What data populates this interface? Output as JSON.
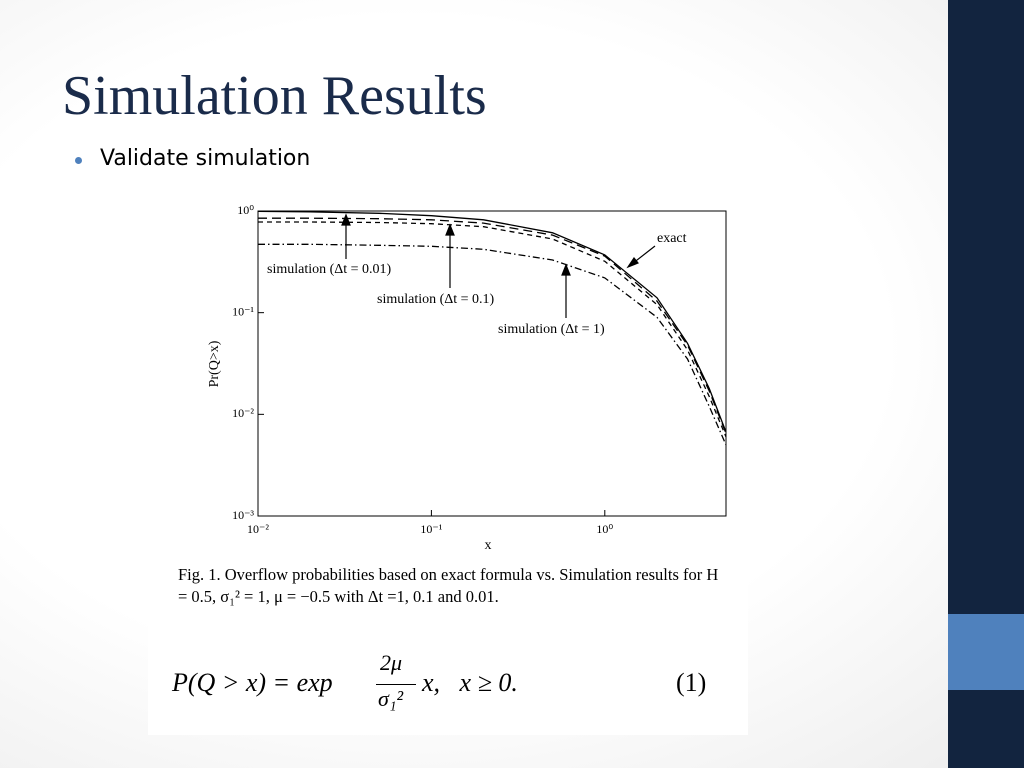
{
  "slide": {
    "title": "Simulation Results",
    "bullets": [
      "Validate simulation"
    ]
  },
  "chart_data": {
    "type": "line",
    "x_label": "x",
    "y_label": "Pr(Q>x)",
    "log_x": true,
    "log_y": true,
    "xlim": [
      0.01,
      5
    ],
    "ylim": [
      0.001,
      1
    ],
    "xticks": [
      {
        "value": 0.01,
        "label": "10⁻²"
      },
      {
        "value": 0.1,
        "label": "10⁻¹"
      },
      {
        "value": 1,
        "label": "10⁰"
      }
    ],
    "yticks": [
      {
        "value": 0.001,
        "label": "10⁻³"
      },
      {
        "value": 0.01,
        "label": "10⁻²"
      },
      {
        "value": 0.1,
        "label": "10⁻¹"
      },
      {
        "value": 1,
        "label": "10⁰"
      }
    ],
    "x": [
      0.01,
      0.02,
      0.05,
      0.1,
      0.2,
      0.5,
      1,
      2,
      3,
      4,
      5
    ],
    "series": [
      {
        "name": "exact",
        "color": "#000000",
        "style": "solid",
        "values": [
          0.99,
          0.98,
          0.95,
          0.9,
          0.82,
          0.61,
          0.37,
          0.14,
          0.05,
          0.018,
          0.0067
        ]
      },
      {
        "name": "simulation (Δt = 0.01)",
        "color": "#000000",
        "style": "longdash",
        "values": [
          0.85,
          0.85,
          0.84,
          0.82,
          0.76,
          0.58,
          0.36,
          0.13,
          0.048,
          0.017,
          0.0065
        ]
      },
      {
        "name": "simulation (Δt = 0.1)",
        "color": "#000000",
        "style": "dashed",
        "values": [
          0.78,
          0.78,
          0.77,
          0.75,
          0.7,
          0.53,
          0.32,
          0.12,
          0.043,
          0.015,
          0.006
        ]
      },
      {
        "name": "simulation (Δt = 1)",
        "color": "#000000",
        "style": "dashdot",
        "values": [
          0.47,
          0.47,
          0.46,
          0.45,
          0.42,
          0.33,
          0.22,
          0.09,
          0.035,
          0.012,
          0.005
        ]
      }
    ]
  },
  "caption": "Fig. 1.   Overflow probabilities based on exact formula vs. Simulation results for H = 0.5, σ₁² = 1, μ = −0.5 with Δt =1, 0.1 and 0.01.",
  "equation": {
    "lhs": "P(Q > x) = exp",
    "numerator": "2μ",
    "denominator": "σ₁²",
    "rhs": "x,   x ≥ 0.",
    "number": "(1)"
  }
}
